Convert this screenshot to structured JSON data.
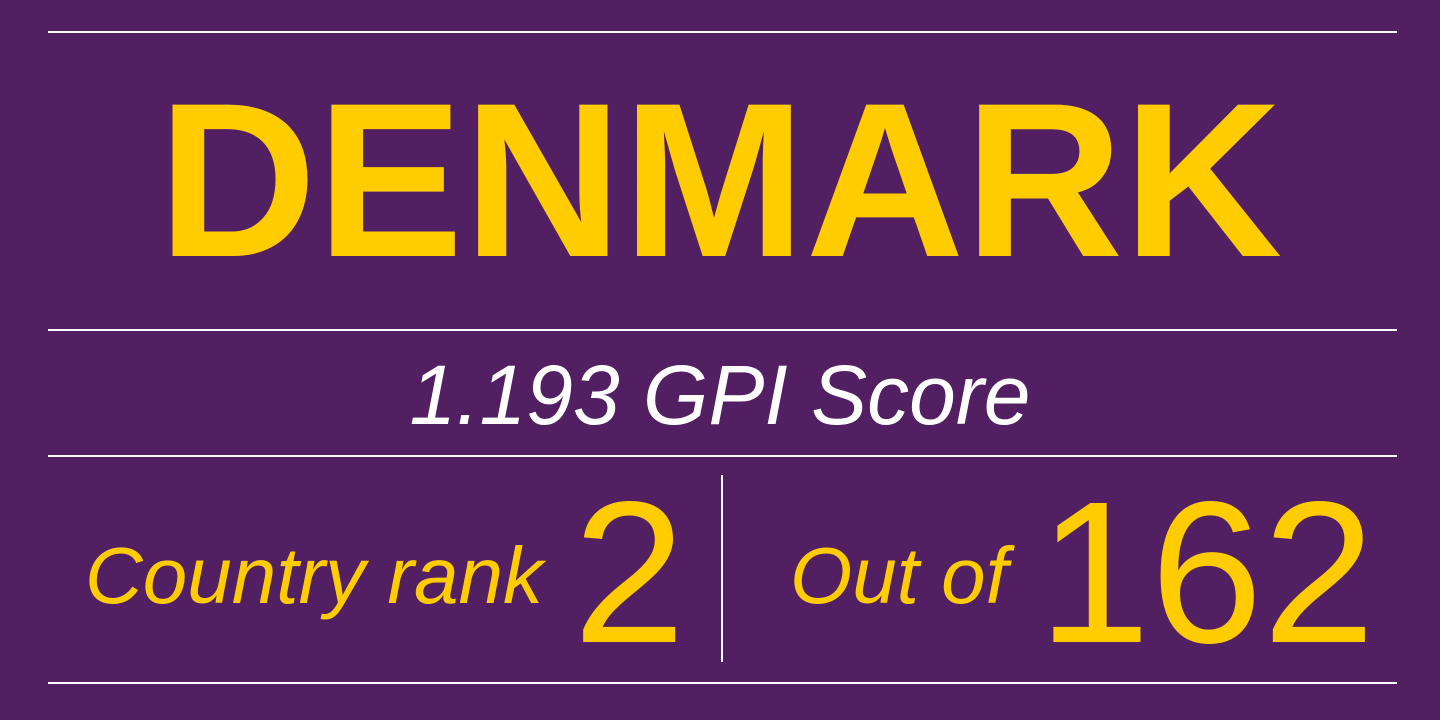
{
  "country": "DENMARK",
  "score_line": "1.193 GPI Score",
  "rank": {
    "label": "Country rank",
    "value": "2"
  },
  "total": {
    "label": "Out of",
    "value": "162"
  },
  "colors": {
    "background": "#521f62",
    "accent": "#ffcc00",
    "text": "#ffffff"
  }
}
